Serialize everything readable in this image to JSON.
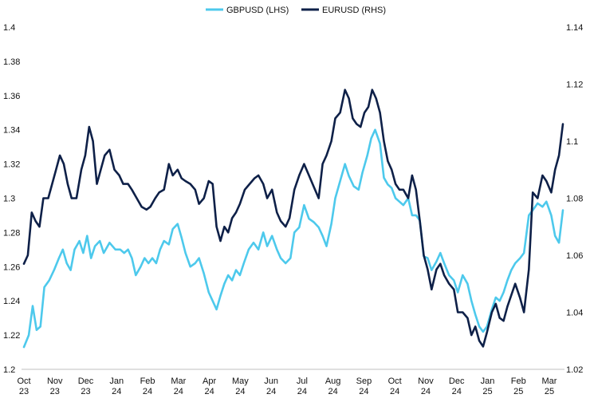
{
  "chart_data": {
    "type": "line",
    "title": "",
    "xlabel": "",
    "ylabel": "",
    "legend_position": "top-center",
    "grid": false,
    "x_tick_labels": [
      [
        "Oct",
        "23"
      ],
      [
        "Nov",
        "23"
      ],
      [
        "Dec",
        "23"
      ],
      [
        "Jan",
        "24"
      ],
      [
        "Feb",
        "24"
      ],
      [
        "Mar",
        "24"
      ],
      [
        "Apr",
        "24"
      ],
      [
        "May",
        "24"
      ],
      [
        "Jun",
        "24"
      ],
      [
        "Jul",
        "24"
      ],
      [
        "Aug",
        "24"
      ],
      [
        "Sep",
        "24"
      ],
      [
        "Oct",
        "24"
      ],
      [
        "Nov",
        "24"
      ],
      [
        "Dec",
        "24"
      ],
      [
        "Jan",
        "25"
      ],
      [
        "Feb",
        "25"
      ],
      [
        "Mar",
        "25"
      ]
    ],
    "y_left": {
      "ylim": [
        1.2,
        1.4
      ],
      "ticks": [
        "1.2",
        "1.22",
        "1.24",
        "1.26",
        "1.28",
        "1.3",
        "1.32",
        "1.34",
        "1.36",
        "1.38",
        "1.4"
      ]
    },
    "y_right": {
      "ylim": [
        1.02,
        1.14
      ],
      "ticks": [
        "1.02",
        "1.04",
        "1.06",
        "1.08",
        "1.1",
        "1.12",
        "1.14"
      ]
    },
    "series": [
      {
        "name": "GBPUSD (LHS)",
        "axis": "left",
        "color": "#4dc9ec",
        "points": [
          [
            "2023-10-01",
            1.213
          ],
          [
            "2023-10-06",
            1.22
          ],
          [
            "2023-10-10",
            1.237
          ],
          [
            "2023-10-14",
            1.223
          ],
          [
            "2023-10-18",
            1.225
          ],
          [
            "2023-10-22",
            1.248
          ],
          [
            "2023-10-27",
            1.252
          ],
          [
            "2023-11-01",
            1.258
          ],
          [
            "2023-11-06",
            1.265
          ],
          [
            "2023-11-10",
            1.27
          ],
          [
            "2023-11-14",
            1.262
          ],
          [
            "2023-11-18",
            1.258
          ],
          [
            "2023-11-22",
            1.27
          ],
          [
            "2023-11-27",
            1.275
          ],
          [
            "2023-12-01",
            1.268
          ],
          [
            "2023-12-05",
            1.278
          ],
          [
            "2023-12-09",
            1.265
          ],
          [
            "2023-12-13",
            1.272
          ],
          [
            "2023-12-18",
            1.275
          ],
          [
            "2023-12-22",
            1.268
          ],
          [
            "2023-12-28",
            1.274
          ],
          [
            "2024-01-03",
            1.27
          ],
          [
            "2024-01-08",
            1.27
          ],
          [
            "2024-01-12",
            1.268
          ],
          [
            "2024-01-16",
            1.27
          ],
          [
            "2024-01-20",
            1.265
          ],
          [
            "2024-01-24",
            1.255
          ],
          [
            "2024-01-29",
            1.26
          ],
          [
            "2024-02-02",
            1.265
          ],
          [
            "2024-02-06",
            1.262
          ],
          [
            "2024-02-10",
            1.265
          ],
          [
            "2024-02-14",
            1.262
          ],
          [
            "2024-02-18",
            1.27
          ],
          [
            "2024-02-22",
            1.275
          ],
          [
            "2024-02-27",
            1.273
          ],
          [
            "2024-03-02",
            1.282
          ],
          [
            "2024-03-07",
            1.285
          ],
          [
            "2024-03-11",
            1.277
          ],
          [
            "2024-03-15",
            1.268
          ],
          [
            "2024-03-20",
            1.26
          ],
          [
            "2024-03-25",
            1.262
          ],
          [
            "2024-03-29",
            1.265
          ],
          [
            "2024-04-03",
            1.256
          ],
          [
            "2024-04-08",
            1.245
          ],
          [
            "2024-04-12",
            1.24
          ],
          [
            "2024-04-16",
            1.235
          ],
          [
            "2024-04-20",
            1.243
          ],
          [
            "2024-04-24",
            1.25
          ],
          [
            "2024-04-28",
            1.255
          ],
          [
            "2024-05-02",
            1.252
          ],
          [
            "2024-05-06",
            1.258
          ],
          [
            "2024-05-10",
            1.255
          ],
          [
            "2024-05-14",
            1.262
          ],
          [
            "2024-05-19",
            1.27
          ],
          [
            "2024-05-24",
            1.274
          ],
          [
            "2024-05-29",
            1.27
          ],
          [
            "2024-06-03",
            1.28
          ],
          [
            "2024-06-07",
            1.272
          ],
          [
            "2024-06-12",
            1.278
          ],
          [
            "2024-06-17",
            1.27
          ],
          [
            "2024-06-21",
            1.265
          ],
          [
            "2024-06-26",
            1.262
          ],
          [
            "2024-07-01",
            1.265
          ],
          [
            "2024-07-05",
            1.28
          ],
          [
            "2024-07-10",
            1.283
          ],
          [
            "2024-07-15",
            1.296
          ],
          [
            "2024-07-20",
            1.288
          ],
          [
            "2024-07-25",
            1.286
          ],
          [
            "2024-07-30",
            1.283
          ],
          [
            "2024-08-03",
            1.278
          ],
          [
            "2024-08-07",
            1.272
          ],
          [
            "2024-08-12",
            1.285
          ],
          [
            "2024-08-16",
            1.3
          ],
          [
            "2024-08-21",
            1.31
          ],
          [
            "2024-08-26",
            1.32
          ],
          [
            "2024-08-30",
            1.313
          ],
          [
            "2024-09-04",
            1.307
          ],
          [
            "2024-09-09",
            1.305
          ],
          [
            "2024-09-13",
            1.315
          ],
          [
            "2024-09-18",
            1.325
          ],
          [
            "2024-09-22",
            1.335
          ],
          [
            "2024-09-26",
            1.34
          ],
          [
            "2024-10-01",
            1.332
          ],
          [
            "2024-10-05",
            1.312
          ],
          [
            "2024-10-09",
            1.308
          ],
          [
            "2024-10-13",
            1.306
          ],
          [
            "2024-10-17",
            1.3
          ],
          [
            "2024-10-21",
            1.298
          ],
          [
            "2024-10-25",
            1.296
          ],
          [
            "2024-10-30",
            1.3
          ],
          [
            "2024-11-03",
            1.29
          ],
          [
            "2024-11-07",
            1.29
          ],
          [
            "2024-11-11",
            1.287
          ],
          [
            "2024-11-15",
            1.266
          ],
          [
            "2024-11-19",
            1.265
          ],
          [
            "2024-11-23",
            1.258
          ],
          [
            "2024-11-28",
            1.263
          ],
          [
            "2024-12-02",
            1.268
          ],
          [
            "2024-12-06",
            1.262
          ],
          [
            "2024-12-11",
            1.255
          ],
          [
            "2024-12-16",
            1.252
          ],
          [
            "2024-12-20",
            1.245
          ],
          [
            "2024-12-25",
            1.255
          ],
          [
            "2024-12-30",
            1.25
          ],
          [
            "2025-01-03",
            1.24
          ],
          [
            "2025-01-07",
            1.232
          ],
          [
            "2025-01-11",
            1.225
          ],
          [
            "2025-01-15",
            1.222
          ],
          [
            "2025-01-19",
            1.225
          ],
          [
            "2025-01-24",
            1.235
          ],
          [
            "2025-01-28",
            1.242
          ],
          [
            "2025-02-01",
            1.24
          ],
          [
            "2025-02-05",
            1.245
          ],
          [
            "2025-02-09",
            1.252
          ],
          [
            "2025-02-13",
            1.258
          ],
          [
            "2025-02-17",
            1.262
          ],
          [
            "2025-02-22",
            1.265
          ],
          [
            "2025-02-26",
            1.268
          ],
          [
            "2025-03-03",
            1.29
          ],
          [
            "2025-03-07",
            1.293
          ],
          [
            "2025-03-12",
            1.297
          ],
          [
            "2025-03-17",
            1.295
          ],
          [
            "2025-03-21",
            1.298
          ],
          [
            "2025-03-26",
            1.29
          ],
          [
            "2025-03-30",
            1.278
          ],
          [
            "2025-04-03",
            1.274
          ],
          [
            "2025-04-07",
            1.293
          ]
        ]
      },
      {
        "name": "EURUSD (RHS)",
        "axis": "right",
        "color": "#0e2048",
        "points": [
          [
            "2023-10-01",
            1.057
          ],
          [
            "2023-10-05",
            1.06
          ],
          [
            "2023-10-09",
            1.075
          ],
          [
            "2023-10-13",
            1.072
          ],
          [
            "2023-10-17",
            1.07
          ],
          [
            "2023-10-21",
            1.08
          ],
          [
            "2023-10-26",
            1.08
          ],
          [
            "2023-10-30",
            1.085
          ],
          [
            "2023-11-03",
            1.09
          ],
          [
            "2023-11-07",
            1.095
          ],
          [
            "2023-11-11",
            1.092
          ],
          [
            "2023-11-15",
            1.085
          ],
          [
            "2023-11-19",
            1.08
          ],
          [
            "2023-11-24",
            1.08
          ],
          [
            "2023-11-29",
            1.09
          ],
          [
            "2023-12-03",
            1.095
          ],
          [
            "2023-12-07",
            1.105
          ],
          [
            "2023-12-11",
            1.1
          ],
          [
            "2023-12-15",
            1.085
          ],
          [
            "2023-12-19",
            1.09
          ],
          [
            "2023-12-23",
            1.095
          ],
          [
            "2023-12-28",
            1.097
          ],
          [
            "2024-01-02",
            1.09
          ],
          [
            "2024-01-07",
            1.088
          ],
          [
            "2024-01-11",
            1.085
          ],
          [
            "2024-01-16",
            1.085
          ],
          [
            "2024-01-20",
            1.083
          ],
          [
            "2024-01-25",
            1.08
          ],
          [
            "2024-01-30",
            1.077
          ],
          [
            "2024-02-04",
            1.076
          ],
          [
            "2024-02-08",
            1.077
          ],
          [
            "2024-02-13",
            1.08
          ],
          [
            "2024-02-17",
            1.082
          ],
          [
            "2024-02-22",
            1.083
          ],
          [
            "2024-02-27",
            1.092
          ],
          [
            "2024-03-02",
            1.088
          ],
          [
            "2024-03-07",
            1.09
          ],
          [
            "2024-03-11",
            1.087
          ],
          [
            "2024-03-15",
            1.086
          ],
          [
            "2024-03-20",
            1.085
          ],
          [
            "2024-03-25",
            1.083
          ],
          [
            "2024-03-29",
            1.078
          ],
          [
            "2024-04-03",
            1.08
          ],
          [
            "2024-04-08",
            1.086
          ],
          [
            "2024-04-12",
            1.085
          ],
          [
            "2024-04-16",
            1.07
          ],
          [
            "2024-04-20",
            1.065
          ],
          [
            "2024-04-24",
            1.07
          ],
          [
            "2024-04-28",
            1.068
          ],
          [
            "2024-05-02",
            1.073
          ],
          [
            "2024-05-06",
            1.075
          ],
          [
            "2024-05-10",
            1.078
          ],
          [
            "2024-05-15",
            1.083
          ],
          [
            "2024-05-20",
            1.085
          ],
          [
            "2024-05-25",
            1.087
          ],
          [
            "2024-05-29",
            1.088
          ],
          [
            "2024-06-03",
            1.085
          ],
          [
            "2024-06-07",
            1.08
          ],
          [
            "2024-06-12",
            1.083
          ],
          [
            "2024-06-17",
            1.075
          ],
          [
            "2024-06-21",
            1.072
          ],
          [
            "2024-06-26",
            1.07
          ],
          [
            "2024-06-30",
            1.073
          ],
          [
            "2024-07-05",
            1.083
          ],
          [
            "2024-07-10",
            1.088
          ],
          [
            "2024-07-15",
            1.092
          ],
          [
            "2024-07-20",
            1.088
          ],
          [
            "2024-07-25",
            1.084
          ],
          [
            "2024-07-30",
            1.08
          ],
          [
            "2024-08-03",
            1.092
          ],
          [
            "2024-08-07",
            1.095
          ],
          [
            "2024-08-12",
            1.1
          ],
          [
            "2024-08-16",
            1.108
          ],
          [
            "2024-08-21",
            1.11
          ],
          [
            "2024-08-26",
            1.118
          ],
          [
            "2024-08-30",
            1.115
          ],
          [
            "2024-09-03",
            1.108
          ],
          [
            "2024-09-07",
            1.106
          ],
          [
            "2024-09-11",
            1.105
          ],
          [
            "2024-09-15",
            1.11
          ],
          [
            "2024-09-19",
            1.112
          ],
          [
            "2024-09-23",
            1.118
          ],
          [
            "2024-09-27",
            1.115
          ],
          [
            "2024-10-01",
            1.11
          ],
          [
            "2024-10-05",
            1.1
          ],
          [
            "2024-10-09",
            1.093
          ],
          [
            "2024-10-13",
            1.09
          ],
          [
            "2024-10-17",
            1.085
          ],
          [
            "2024-10-21",
            1.083
          ],
          [
            "2024-10-25",
            1.083
          ],
          [
            "2024-10-30",
            1.08
          ],
          [
            "2024-11-03",
            1.088
          ],
          [
            "2024-11-07",
            1.083
          ],
          [
            "2024-11-11",
            1.072
          ],
          [
            "2024-11-15",
            1.06
          ],
          [
            "2024-11-19",
            1.055
          ],
          [
            "2024-11-23",
            1.048
          ],
          [
            "2024-11-28",
            1.055
          ],
          [
            "2024-12-02",
            1.057
          ],
          [
            "2024-12-06",
            1.053
          ],
          [
            "2024-12-11",
            1.05
          ],
          [
            "2024-12-16",
            1.048
          ],
          [
            "2024-12-20",
            1.04
          ],
          [
            "2024-12-25",
            1.04
          ],
          [
            "2024-12-30",
            1.038
          ],
          [
            "2025-01-03",
            1.032
          ],
          [
            "2025-01-07",
            1.035
          ],
          [
            "2025-01-11",
            1.03
          ],
          [
            "2025-01-15",
            1.028
          ],
          [
            "2025-01-19",
            1.033
          ],
          [
            "2025-01-24",
            1.04
          ],
          [
            "2025-01-28",
            1.043
          ],
          [
            "2025-02-01",
            1.038
          ],
          [
            "2025-02-05",
            1.037
          ],
          [
            "2025-02-09",
            1.042
          ],
          [
            "2025-02-13",
            1.046
          ],
          [
            "2025-02-17",
            1.05
          ],
          [
            "2025-02-22",
            1.045
          ],
          [
            "2025-02-26",
            1.04
          ],
          [
            "2025-03-03",
            1.055
          ],
          [
            "2025-03-07",
            1.082
          ],
          [
            "2025-03-12",
            1.08
          ],
          [
            "2025-03-17",
            1.088
          ],
          [
            "2025-03-21",
            1.086
          ],
          [
            "2025-03-26",
            1.082
          ],
          [
            "2025-03-30",
            1.09
          ],
          [
            "2025-04-03",
            1.095
          ],
          [
            "2025-04-07",
            1.106
          ]
        ]
      }
    ]
  }
}
